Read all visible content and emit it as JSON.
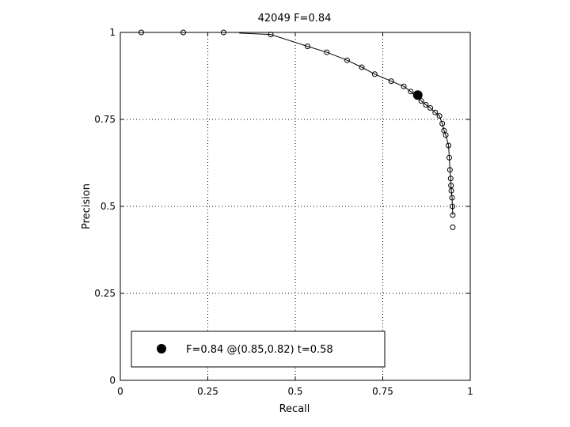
{
  "chart_data": {
    "type": "line",
    "title": "42049 F=0.84",
    "xlabel": "Recall",
    "ylabel": "Precision",
    "xlim": [
      0,
      1
    ],
    "ylim": [
      0,
      1
    ],
    "xticks": [
      "0",
      "0.25",
      "0.5",
      "0.75",
      "1"
    ],
    "yticks": [
      "0",
      "0.25",
      "0.5",
      "0.75",
      "1"
    ],
    "grid": "dotted",
    "series": [
      {
        "marker": "open-circle",
        "x": [
          0.06,
          0.18,
          0.295,
          0.34,
          0.43,
          0.535,
          0.59,
          0.648,
          0.69,
          0.727,
          0.774,
          0.81,
          0.83,
          0.86,
          0.873,
          0.886,
          0.9,
          0.912,
          0.92,
          0.925,
          0.93,
          0.938,
          0.94,
          0.942,
          0.944,
          0.945,
          0.946,
          0.948,
          0.949,
          0.95
        ],
        "y": [
          1.0,
          1.0,
          1.0,
          0.998,
          0.994,
          0.96,
          0.943,
          0.92,
          0.9,
          0.88,
          0.86,
          0.845,
          0.83,
          0.803,
          0.792,
          0.783,
          0.77,
          0.76,
          0.738,
          0.718,
          0.705,
          0.675,
          0.64,
          0.605,
          0.58,
          0.56,
          0.545,
          0.525,
          0.5,
          0.475
        ]
      }
    ],
    "trailing_marker": {
      "x": 0.95,
      "y": 0.44
    },
    "best_point": {
      "x": 0.85,
      "y": 0.82
    },
    "legend": {
      "position": "bottom-left",
      "label": "F=0.84 @(0.85,0.82) t=0.58"
    }
  }
}
